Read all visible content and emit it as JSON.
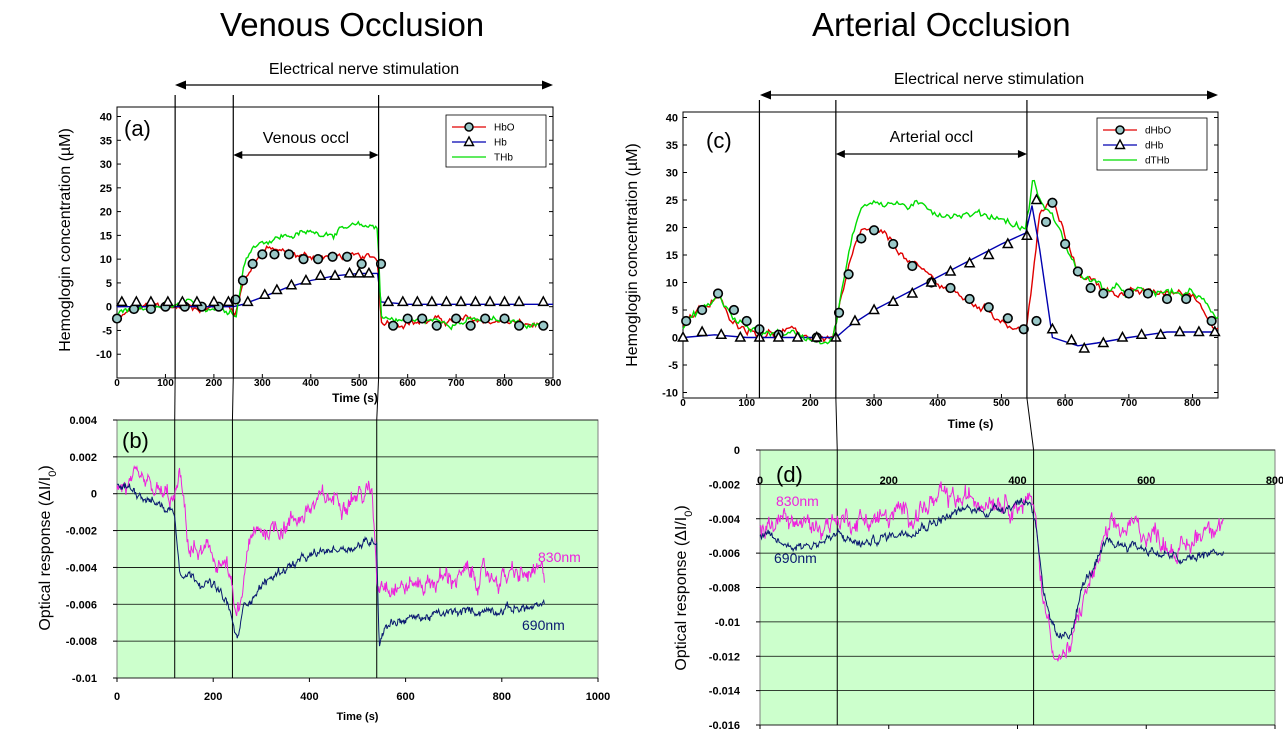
{
  "page": {
    "left_title": "Venous Occlusion",
    "right_title": "Arterial Occlusion",
    "stim_label_left": "Electrical nerve stimulation",
    "stim_label_right": "Electrical nerve stimulation",
    "colors": {
      "HbO": "#e00000",
      "Hb": "#0000b0",
      "THb": "#00dd00",
      "nm830": "#ee22dd",
      "nm690": "#0a1a70",
      "plot_bg": "#ccffcc"
    }
  },
  "chart_data": [
    {
      "id": "a",
      "type": "line",
      "panel_label": "(a)",
      "title": "",
      "xlabel": "Time (s)",
      "ylabel": "Hemoglogin concentration (µM)",
      "xlim": [
        0,
        900
      ],
      "ylim": [
        -15,
        42
      ],
      "xticks": [
        0,
        100,
        200,
        300,
        400,
        500,
        600,
        700,
        800,
        900
      ],
      "yticks": [
        -10,
        -5,
        0,
        5,
        10,
        15,
        20,
        25,
        30,
        35,
        40
      ],
      "occlusion_label": "Venous occl",
      "occlusion_range": [
        240,
        540
      ],
      "event_lines": [
        120,
        240,
        540
      ],
      "legend": {
        "placement": "top-right",
        "entries": [
          "HbO",
          "Hb",
          "THb"
        ]
      },
      "series": [
        {
          "name": "HbO",
          "color": "#e00000",
          "marker": "circle",
          "x": [
            0,
            20,
            60,
            100,
            140,
            180,
            235,
            245,
            260,
            280,
            300,
            320,
            360,
            400,
            440,
            480,
            500,
            520,
            538,
            545,
            560,
            600,
            650,
            700,
            750,
            800,
            850,
            890
          ],
          "y": [
            -3,
            -1.5,
            0,
            0,
            0,
            0,
            0,
            -1,
            5,
            9,
            12,
            12,
            11,
            10.5,
            10.5,
            10.5,
            10,
            10,
            10,
            -3,
            -3,
            -3,
            -3,
            -3,
            -3,
            -3,
            -4,
            -4
          ]
        },
        {
          "name": "Hb",
          "color": "#0000b0",
          "marker": "triangle",
          "x": [
            0,
            100,
            200,
            240,
            260,
            300,
            350,
            400,
            450,
            500,
            538,
            545,
            600,
            700,
            800,
            900
          ],
          "y": [
            0,
            0,
            0,
            0,
            0.5,
            2,
            4,
            5.5,
            6.5,
            7,
            7,
            1,
            0.5,
            0.5,
            0.5,
            0.5
          ]
        },
        {
          "name": "THb",
          "color": "#00dd00",
          "marker": "none",
          "x": [
            0,
            100,
            200,
            235,
            245,
            260,
            280,
            300,
            350,
            400,
            450,
            500,
            538,
            545,
            600,
            700,
            800,
            890
          ],
          "y": [
            -2,
            0,
            0,
            0,
            -2,
            8,
            13,
            14,
            15,
            15.5,
            16,
            16.5,
            17,
            -2,
            -3,
            -3,
            -3,
            -4
          ]
        }
      ],
      "marker_points": {
        "HbO": {
          "x": [
            0,
            35,
            70,
            100,
            140,
            175,
            210,
            245,
            260,
            280,
            300,
            325,
            355,
            385,
            415,
            445,
            475,
            505,
            545,
            570,
            600,
            630,
            660,
            700,
            730,
            760,
            800,
            830,
            880
          ],
          "y": [
            -2.5,
            -0.5,
            -0.5,
            0,
            0,
            0,
            0,
            1.5,
            5.5,
            9,
            11,
            11,
            11,
            10,
            10,
            10.5,
            10.5,
            9,
            9,
            -4,
            -2.5,
            -2.5,
            -4,
            -2.5,
            -4,
            -2.5,
            -2.5,
            -4,
            -4
          ]
        },
        "Hb": {
          "x": [
            10,
            40,
            70,
            105,
            135,
            165,
            200,
            230,
            270,
            305,
            330,
            360,
            390,
            420,
            450,
            480,
            500,
            520,
            560,
            590,
            620,
            650,
            680,
            710,
            740,
            770,
            800,
            830,
            880
          ],
          "y": [
            1,
            1,
            1,
            1,
            1,
            1,
            1,
            1,
            1,
            2.5,
            3.5,
            4.5,
            5.5,
            6.5,
            6.5,
            7,
            7,
            7,
            1,
            1,
            1,
            1,
            1,
            1,
            1,
            1,
            1,
            1,
            1
          ]
        }
      }
    },
    {
      "id": "b",
      "type": "line",
      "panel_label": "(b)",
      "title": "",
      "xlabel": "Time (s)",
      "ylabel": "Optical response (ΔI/I",
      "ylabel_sub": "0",
      "xlim": [
        0,
        1000
      ],
      "ylim": [
        -0.01,
        0.004
      ],
      "xticks": [
        0,
        200,
        400,
        600,
        800,
        1000
      ],
      "yticks": [
        -0.01,
        -0.008,
        -0.006,
        -0.004,
        -0.002,
        0,
        0.002,
        0.004
      ],
      "yticklabels": [
        "-0.01",
        "-0.008",
        "-0.006",
        "-0.004",
        "-0.002",
        "0",
        "0.002",
        "0.004"
      ],
      "grid": "horizontal",
      "series": [
        {
          "name": "830nm",
          "color": "#ee22dd",
          "x": [
            0,
            40,
            80,
            120,
            130,
            150,
            200,
            230,
            248,
            260,
            270,
            300,
            360,
            420,
            480,
            530,
            542,
            550,
            600,
            700,
            800,
            890
          ],
          "y": [
            0.0005,
            0.0003,
            0,
            -0.0005,
            0.001,
            -0.003,
            -0.0035,
            -0.004,
            -0.007,
            -0.006,
            -0.003,
            -0.002,
            -0.0015,
            -0.0005,
            0,
            0,
            -0.005,
            -0.0045,
            -0.005,
            -0.0045,
            -0.0045,
            -0.0045
          ]
        },
        {
          "name": "690nm",
          "color": "#0a1a70",
          "x": [
            0,
            40,
            80,
            120,
            130,
            160,
            200,
            230,
            250,
            265,
            300,
            350,
            400,
            450,
            500,
            540,
            545,
            560,
            600,
            700,
            800,
            890
          ],
          "y": [
            0.0005,
            0.0002,
            -0.0005,
            -0.001,
            -0.004,
            -0.0045,
            -0.005,
            -0.006,
            -0.008,
            -0.006,
            -0.005,
            -0.004,
            -0.0035,
            -0.003,
            -0.0028,
            -0.0025,
            -0.008,
            -0.007,
            -0.0068,
            -0.0065,
            -0.0062,
            -0.0062
          ]
        }
      ],
      "event_lines": [
        120,
        240,
        540
      ]
    },
    {
      "id": "c",
      "type": "line",
      "panel_label": "(c)",
      "title": "",
      "xlabel": "Time (s)",
      "ylabel": "Hemoglogin concentration (µM)",
      "xlim": [
        0,
        840
      ],
      "ylim": [
        -11,
        41
      ],
      "xticks": [
        0,
        100,
        200,
        300,
        400,
        500,
        600,
        700,
        800
      ],
      "yticks": [
        -10,
        -5,
        0,
        5,
        10,
        15,
        20,
        25,
        30,
        35,
        40
      ],
      "occlusion_label": "Arterial occl",
      "occlusion_range": [
        240,
        540
      ],
      "event_lines": [
        120,
        240,
        540
      ],
      "legend": {
        "placement": "top-right",
        "entries": [
          "dHbO",
          "dHb",
          "dTHb"
        ]
      },
      "series": [
        {
          "name": "dHbO",
          "color": "#e00000",
          "marker": "circle",
          "x": [
            0,
            20,
            45,
            55,
            80,
            120,
            160,
            200,
            235,
            245,
            260,
            280,
            300,
            330,
            360,
            400,
            440,
            480,
            520,
            538,
            548,
            560,
            580,
            600,
            620,
            660,
            700,
            760,
            800,
            840
          ],
          "y": [
            2,
            4,
            6,
            7,
            3,
            1,
            1,
            0,
            0,
            5,
            12,
            19,
            19,
            17,
            13,
            10,
            7,
            5,
            2,
            1,
            10,
            22,
            25,
            18,
            12,
            9,
            8,
            8,
            8,
            2
          ]
        },
        {
          "name": "dHb",
          "color": "#0000b0",
          "marker": "triangle",
          "x": [
            0,
            50,
            100,
            200,
            240,
            260,
            300,
            350,
            400,
            450,
            500,
            538,
            548,
            560,
            580,
            620,
            650,
            700,
            760,
            840
          ],
          "y": [
            0,
            0.5,
            0,
            0,
            0,
            2,
            5,
            8,
            11,
            14,
            17,
            19,
            24,
            16,
            0,
            -1.5,
            -1,
            0,
            1,
            1
          ]
        },
        {
          "name": "dTHb",
          "color": "#00dd00",
          "marker": "none",
          "x": [
            0,
            20,
            45,
            55,
            80,
            120,
            160,
            200,
            235,
            245,
            260,
            280,
            300,
            350,
            400,
            450,
            500,
            530,
            538,
            550,
            560,
            580,
            600,
            620,
            660,
            700,
            760,
            800,
            840
          ],
          "y": [
            2,
            4,
            6,
            8,
            3,
            1,
            1,
            0,
            0,
            6,
            15,
            24,
            25,
            24,
            23,
            22.5,
            22,
            20,
            20,
            29,
            25,
            22,
            17,
            12,
            9,
            8,
            8,
            8,
            4
          ]
        }
      ],
      "marker_points": {
        "dHbO": {
          "x": [
            5,
            30,
            55,
            80,
            100,
            120,
            150,
            210,
            245,
            260,
            280,
            300,
            330,
            360,
            390,
            420,
            450,
            480,
            510,
            535,
            555,
            570,
            580,
            600,
            620,
            640,
            660,
            700,
            730,
            760,
            790,
            830
          ],
          "y": [
            3,
            5,
            8,
            5,
            3,
            1.5,
            0.5,
            0,
            4.5,
            11.5,
            18,
            19.5,
            17,
            13,
            10,
            9,
            7,
            5.5,
            3.5,
            1.5,
            3,
            21,
            24.5,
            17,
            12,
            9,
            8,
            8,
            8,
            7,
            7,
            3
          ]
        },
        "dHb": {
          "x": [
            0,
            30,
            60,
            90,
            120,
            150,
            180,
            210,
            240,
            270,
            300,
            330,
            360,
            390,
            420,
            450,
            480,
            510,
            540,
            555,
            580,
            610,
            630,
            660,
            690,
            720,
            750,
            780,
            810,
            835
          ],
          "y": [
            0,
            1,
            0.5,
            0,
            0,
            0,
            0,
            0,
            0,
            3,
            5,
            6.5,
            8,
            10,
            12,
            13.5,
            15,
            17,
            18.5,
            25,
            1.5,
            -0.5,
            -2,
            -1,
            0,
            0.5,
            0.5,
            1,
            1,
            1
          ]
        }
      }
    },
    {
      "id": "d",
      "type": "line",
      "panel_label": "(d)",
      "title": "",
      "xlabel": "",
      "ylabel": "Optical response (ΔI/I",
      "ylabel_sub": "0",
      "xlim": [
        0,
        800
      ],
      "ylim": [
        -0.016,
        0
      ],
      "xticks": [
        0,
        200,
        400,
        600,
        800
      ],
      "yticks": [
        0,
        -0.002,
        -0.004,
        -0.006,
        -0.008,
        -0.01,
        -0.012,
        -0.014,
        -0.016
      ],
      "yticklabels": [
        "0",
        "-0.002",
        "-0.004",
        "-0.006",
        "-0.008",
        "-0.01",
        "-0.012",
        "-0.014",
        "-0.016"
      ],
      "grid": "horizontal",
      "series": [
        {
          "name": "830nm",
          "color": "#ee22dd",
          "x": [
            0,
            40,
            80,
            120,
            160,
            200,
            240,
            280,
            320,
            360,
            400,
            420,
            430,
            440,
            450,
            460,
            480,
            500,
            540,
            580,
            620,
            660,
            700,
            720
          ],
          "y": [
            -0.0045,
            -0.004,
            -0.0045,
            -0.004,
            -0.004,
            -0.004,
            -0.0035,
            -0.003,
            -0.003,
            -0.0025,
            -0.003,
            -0.003,
            -0.0045,
            -0.009,
            -0.01,
            -0.012,
            -0.012,
            -0.009,
            -0.005,
            -0.0045,
            -0.005,
            -0.006,
            -0.004,
            -0.004
          ]
        },
        {
          "name": "690nm",
          "color": "#0a1a70",
          "x": [
            0,
            40,
            80,
            120,
            160,
            200,
            240,
            280,
            320,
            360,
            400,
            420,
            430,
            440,
            450,
            460,
            480,
            500,
            540,
            580,
            620,
            660,
            700,
            720
          ],
          "y": [
            -0.005,
            -0.0055,
            -0.0055,
            -0.005,
            -0.0055,
            -0.005,
            -0.0045,
            -0.004,
            -0.0035,
            -0.0035,
            -0.003,
            -0.003,
            -0.0045,
            -0.008,
            -0.01,
            -0.011,
            -0.011,
            -0.008,
            -0.0055,
            -0.0055,
            -0.006,
            -0.0065,
            -0.006,
            -0.006
          ]
        }
      ],
      "event_lines": [
        120,
        425
      ]
    }
  ]
}
